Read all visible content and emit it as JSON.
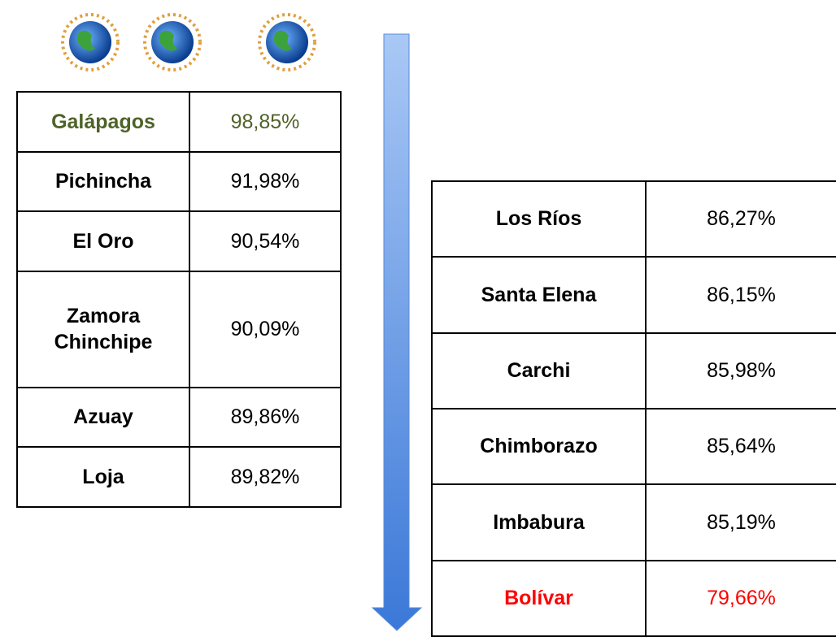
{
  "left_table": {
    "rows": [
      [
        "Galápagos",
        "98,85%"
      ],
      [
        "Pichincha",
        "91,98%"
      ],
      [
        "El Oro",
        "90,54%"
      ],
      [
        "Zamora Chinchipe",
        "90,09%"
      ],
      [
        "Azuay",
        "89,86%"
      ],
      [
        "Loja",
        "89,82%"
      ]
    ]
  },
  "right_table": {
    "rows": [
      [
        "Los Ríos",
        "86,27%"
      ],
      [
        "Santa Elena",
        "86,15%"
      ],
      [
        "Carchi",
        "85,98%"
      ],
      [
        "Chimborazo",
        "85,64%"
      ],
      [
        "Imbabura",
        "85,19%"
      ],
      [
        "Bolívar",
        "79,66%"
      ]
    ]
  }
}
